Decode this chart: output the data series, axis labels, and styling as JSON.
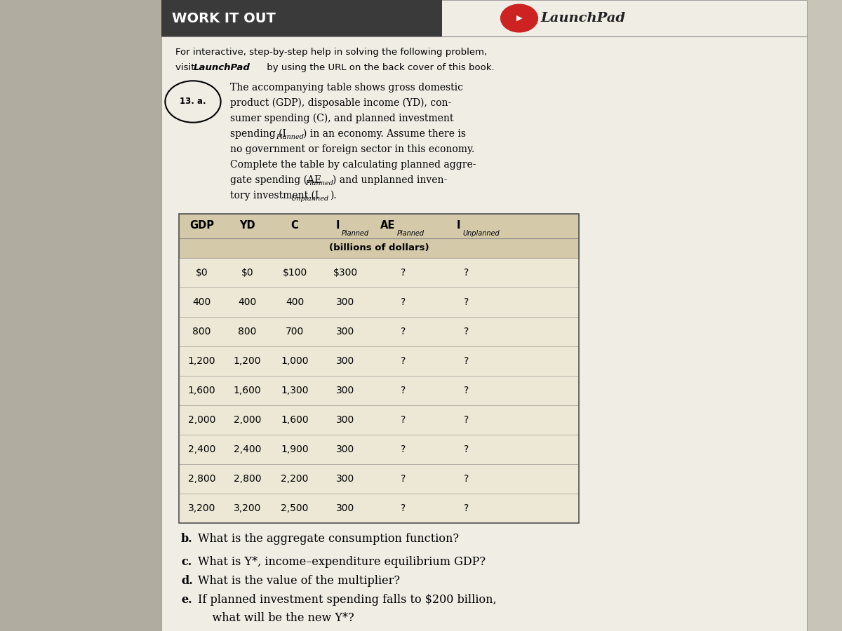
{
  "header_line1": "For interactive, step-by-step help in solving the following problem,",
  "header_line2_pre": "visit",
  "header_line2_bold": "LaunchPad",
  "header_line2_post": " by using the URL on the back cover of this book.",
  "prob_label": "13. a.",
  "prob_lines": [
    "The accompanying table shows gross domestic",
    "product (GDP), disposable income (YD), con-",
    "sumer spending (C), and planned investment",
    "spending (I",
    ") in an economy. Assume there is",
    "no government or foreign sector in this economy.",
    "Complete the table by calculating planned aggre-",
    "gate spending (AE",
    ") and unplanned inven-",
    "tory investment (I",
    ")."
  ],
  "col_labels": [
    "GDP",
    "YD",
    "C",
    "I",
    "AE",
    "I"
  ],
  "col_subs": [
    "",
    "",
    "",
    "Planned",
    "Planned",
    "Unplanned"
  ],
  "subheader": "(billions of dollars)",
  "rows": [
    [
      "$0",
      "$0",
      "$100",
      "$300",
      "?",
      "?"
    ],
    [
      "400",
      "400",
      "400",
      "300",
      "?",
      "?"
    ],
    [
      "800",
      "800",
      "700",
      "300",
      "?",
      "?"
    ],
    [
      "1,200",
      "1,200",
      "1,000",
      "300",
      "?",
      "?"
    ],
    [
      "1,600",
      "1,600",
      "1,300",
      "300",
      "?",
      "?"
    ],
    [
      "2,000",
      "2,000",
      "1,600",
      "300",
      "?",
      "?"
    ],
    [
      "2,400",
      "2,400",
      "1,900",
      "300",
      "?",
      "?"
    ],
    [
      "2,800",
      "2,800",
      "2,200",
      "300",
      "?",
      "?"
    ],
    [
      "3,200",
      "3,200",
      "2,500",
      "300",
      "?",
      "?"
    ]
  ],
  "q_labels": [
    "b.",
    "c.",
    "d.",
    "e."
  ],
  "q_texts": [
    "What is the aggregate consumption function?",
    "What is Y*, income–expenditure equilibrium GDP?",
    "What is the value of the multiplier?",
    "If planned investment spending falls to $200 billion,"
  ],
  "q_text2": [
    "",
    "",
    "",
    "    what will be the new Y*?"
  ],
  "outer_bg": "#c8c4b8",
  "page_bg": "#f0ede5",
  "table_hdr_bg": "#d4c9a8",
  "table_row_bg": "#ede8d5",
  "dark_bar": "#3a3a3a",
  "launch_red": "#cc2222",
  "left_margin_color": "#b0aca0"
}
